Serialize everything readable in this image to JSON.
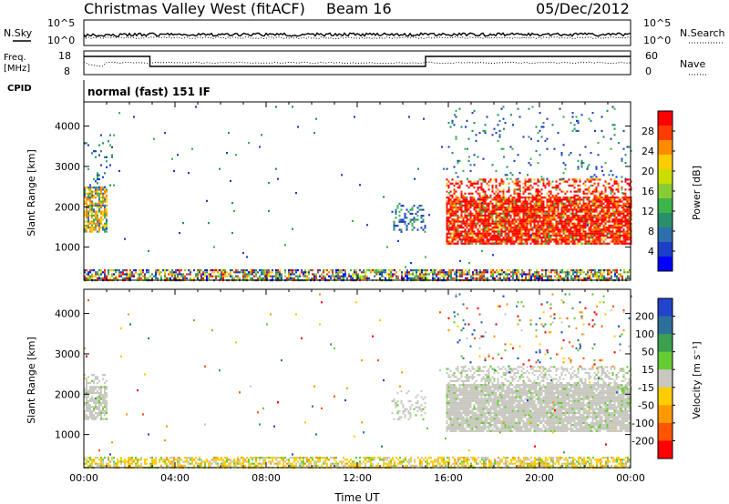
{
  "header": {
    "station": "Christmas Valley West (fitACF)",
    "beam": "Beam 16",
    "date": "05/Dec/2012"
  },
  "labels": {
    "nsky": "N.Sky",
    "nsearch": "N.Search",
    "freq": "Freq.",
    "freq_unit": "[MHz]",
    "nave": "Nave",
    "cpid": "CPID",
    "cpid_value": "normal (fast) 151 IF"
  },
  "ticks": {
    "noise_left": [
      "10^5",
      "10^0"
    ],
    "noise_right": [
      "10^5",
      "10^0"
    ],
    "freq_left": [
      "18",
      "8"
    ],
    "freq_right": [
      "60",
      "0"
    ]
  },
  "colorbars": {
    "power": {
      "label": "Power [dB]",
      "ticks": [
        "28",
        "24",
        "20",
        "16",
        "12",
        "8",
        "4"
      ],
      "colors": [
        "#ff0000",
        "#ff3c00",
        "#ff8c00",
        "#ffcc00",
        "#ccdd00",
        "#88cc33",
        "#3cb44b",
        "#2a8f6a",
        "#2d6faa",
        "#1c3fc8",
        "#0000ff"
      ]
    },
    "velocity": {
      "label": "Velocity [m s⁻¹]",
      "ticks": [
        "200",
        "100",
        "50",
        "15",
        "-15",
        "-50",
        "-100",
        "-200"
      ],
      "colors": [
        "#2244cc",
        "#2d6f9a",
        "#3ca050",
        "#66cc33",
        "#c8c8c0",
        "#ffcc00",
        "#ff9900",
        "#ff5500",
        "#ff0000"
      ]
    }
  },
  "chart_data": [
    {
      "type": "heatmap",
      "name": "power",
      "ylabel": "Slant Range [km]",
      "xlabel": "",
      "yticks": [
        1000,
        2000,
        3000,
        4000
      ],
      "ylim": [
        180,
        4600
      ],
      "xlim_hours": [
        0,
        24
      ],
      "regions": [
        {
          "t": [
            0.0,
            1.0
          ],
          "r": [
            1400,
            2500
          ],
          "level": "mid",
          "density": 0.75
        },
        {
          "t": [
            0.0,
            1.3
          ],
          "r": [
            2500,
            3800
          ],
          "level": "low",
          "density": 0.08
        },
        {
          "t": [
            0.0,
            24.0
          ],
          "r": [
            200,
            450
          ],
          "level": "mixed",
          "density": 0.65
        },
        {
          "t": [
            13.5,
            15.0
          ],
          "r": [
            1400,
            2100
          ],
          "level": "low",
          "density": 0.25
        },
        {
          "t": [
            15.9,
            24.0
          ],
          "r": [
            1100,
            2700
          ],
          "level": "high",
          "density": 0.85
        },
        {
          "t": [
            15.9,
            24.0
          ],
          "r": [
            2700,
            4500
          ],
          "level": "low",
          "density": 0.04
        },
        {
          "t": [
            0.0,
            24.0
          ],
          "r": [
            500,
            4500
          ],
          "level": "low",
          "density": 0.004
        }
      ]
    },
    {
      "type": "heatmap",
      "name": "velocity",
      "ylabel": "Slant Range [km]",
      "xlabel": "Time UT",
      "xticks": [
        "00:00",
        "04:00",
        "08:00",
        "12:00",
        "16:00",
        "20:00",
        "00:00"
      ],
      "yticks": [
        1000,
        2000,
        3000,
        4000
      ],
      "ylim": [
        180,
        4600
      ],
      "xlim_hours": [
        0,
        24
      ],
      "regions": [
        {
          "t": [
            0.0,
            1.0
          ],
          "r": [
            1400,
            2500
          ],
          "level": "gray",
          "density": 0.75
        },
        {
          "t": [
            0.0,
            24.0
          ],
          "r": [
            200,
            450
          ],
          "level": "neg",
          "density": 0.6
        },
        {
          "t": [
            13.5,
            15.0
          ],
          "r": [
            1400,
            2100
          ],
          "level": "gray",
          "density": 0.25
        },
        {
          "t": [
            15.9,
            24.0
          ],
          "r": [
            1100,
            2700
          ],
          "level": "gray",
          "density": 0.9
        },
        {
          "t": [
            15.9,
            24.0
          ],
          "r": [
            2700,
            4500
          ],
          "level": "mixed",
          "density": 0.04
        },
        {
          "t": [
            0.0,
            24.0
          ],
          "r": [
            500,
            4500
          ],
          "level": "mixed",
          "density": 0.004
        }
      ]
    }
  ]
}
